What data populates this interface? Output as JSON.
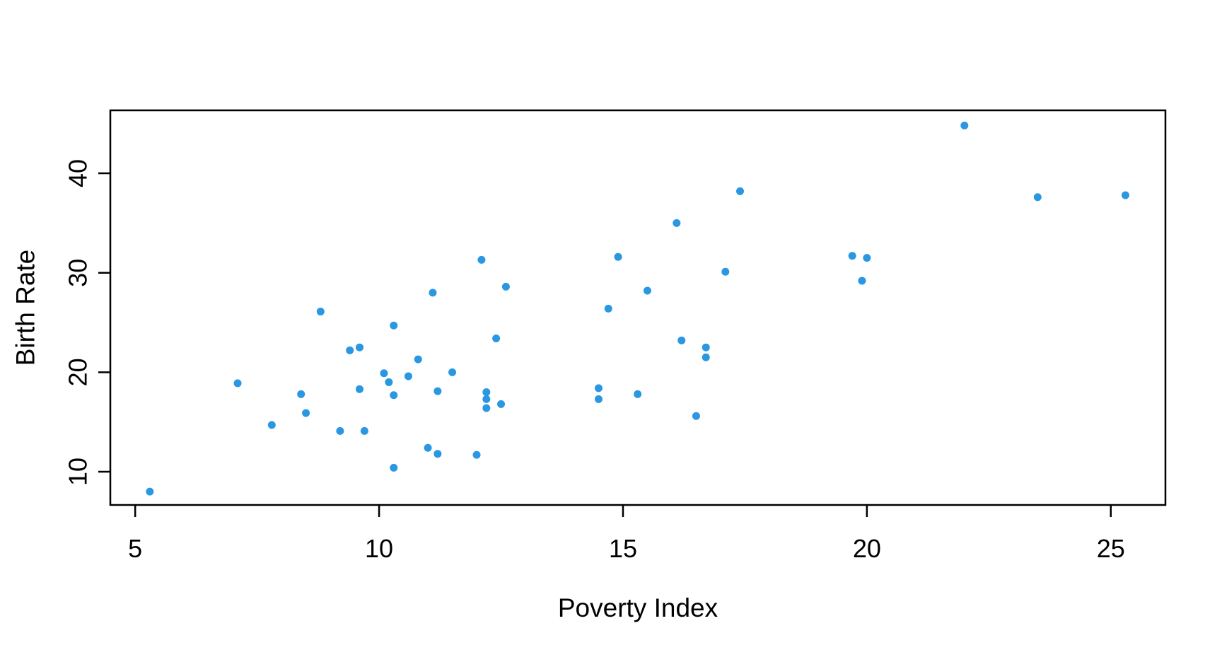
{
  "figure": {
    "background": "#ffffff"
  },
  "chart_data": {
    "type": "scatter",
    "title": "",
    "xlabel": "Poverty Index",
    "ylabel": "Birth Rate",
    "x_ticks": [
      5,
      10,
      15,
      20,
      25
    ],
    "y_ticks": [
      10,
      20,
      30,
      40
    ],
    "xlim": [
      4.49,
      26.12
    ],
    "ylim": [
      6.66,
      46.33
    ],
    "grid": false,
    "legend": null,
    "point_color": "#2997E2",
    "axis_color": "#000000",
    "points": [
      [
        5.3,
        8.0
      ],
      [
        7.1,
        18.9
      ],
      [
        7.8,
        14.7
      ],
      [
        8.4,
        17.8
      ],
      [
        8.5,
        15.9
      ],
      [
        8.8,
        26.1
      ],
      [
        9.2,
        14.1
      ],
      [
        9.7,
        14.1
      ],
      [
        9.4,
        22.2
      ],
      [
        9.6,
        22.5
      ],
      [
        9.6,
        18.3
      ],
      [
        10.1,
        19.9
      ],
      [
        10.2,
        19.0
      ],
      [
        10.3,
        24.7
      ],
      [
        10.3,
        17.7
      ],
      [
        10.3,
        10.4
      ],
      [
        10.6,
        19.6
      ],
      [
        10.8,
        21.3
      ],
      [
        11.0,
        12.4
      ],
      [
        11.2,
        11.8
      ],
      [
        11.2,
        18.1
      ],
      [
        11.1,
        28.0
      ],
      [
        11.5,
        20.0
      ],
      [
        12.0,
        11.7
      ],
      [
        12.1,
        31.3
      ],
      [
        12.2,
        18.0
      ],
      [
        12.2,
        17.3
      ],
      [
        12.2,
        16.4
      ],
      [
        12.4,
        23.4
      ],
      [
        12.5,
        16.8
      ],
      [
        12.6,
        28.6
      ],
      [
        14.5,
        18.4
      ],
      [
        14.5,
        17.3
      ],
      [
        14.7,
        26.4
      ],
      [
        14.9,
        31.6
      ],
      [
        15.3,
        17.8
      ],
      [
        15.5,
        28.2
      ],
      [
        16.1,
        35.0
      ],
      [
        16.2,
        23.2
      ],
      [
        16.5,
        15.6
      ],
      [
        16.7,
        22.5
      ],
      [
        16.7,
        21.5
      ],
      [
        17.1,
        30.1
      ],
      [
        17.4,
        38.2
      ],
      [
        19.7,
        31.7
      ],
      [
        19.9,
        29.2
      ],
      [
        20.0,
        31.5
      ],
      [
        22.0,
        44.8
      ],
      [
        23.5,
        37.6
      ],
      [
        25.3,
        37.8
      ]
    ]
  }
}
